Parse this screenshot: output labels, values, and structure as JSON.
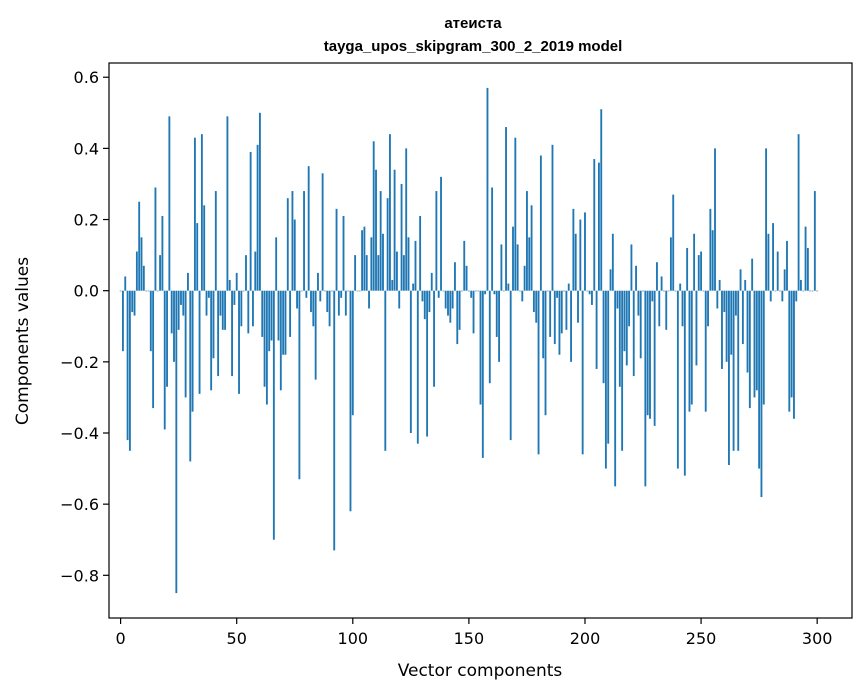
{
  "chart_data": {
    "type": "bar",
    "title": "атеиста",
    "subtitle": "tayga_upos_skipgram_300_2_2019 model",
    "xlabel": "Vector components",
    "ylabel": "Components values",
    "xlim": [
      -5,
      315
    ],
    "ylim": [
      -0.92,
      0.64
    ],
    "xticks": [
      0,
      50,
      100,
      150,
      200,
      250,
      300
    ],
    "yticks": [
      -0.8,
      -0.6,
      -0.4,
      -0.2,
      0.0,
      0.2,
      0.4,
      0.6
    ],
    "ytick_labels": [
      "−0.8",
      "−0.6",
      "−0.4",
      "−0.2",
      "0.0",
      "0.2",
      "0.4",
      "0.6"
    ],
    "grid": false,
    "color": "#1f77b4",
    "values": [
      0.0,
      -0.17,
      0.04,
      -0.42,
      -0.45,
      -0.06,
      -0.07,
      0.11,
      0.25,
      0.15,
      0.07,
      0.0,
      0.0,
      -0.17,
      -0.33,
      0.29,
      0.0,
      0.1,
      0.21,
      -0.39,
      -0.27,
      0.49,
      -0.12,
      -0.2,
      -0.85,
      -0.11,
      -0.04,
      -0.07,
      -0.3,
      0.05,
      -0.48,
      -0.34,
      0.43,
      0.19,
      -0.29,
      0.44,
      0.24,
      -0.07,
      -0.02,
      -0.28,
      -0.19,
      0.28,
      -0.24,
      -0.07,
      -0.11,
      -0.11,
      0.49,
      0.03,
      -0.24,
      -0.04,
      0.05,
      -0.29,
      -0.1,
      0.0,
      0.1,
      -0.12,
      0.39,
      -0.1,
      0.11,
      0.41,
      0.5,
      -0.13,
      -0.27,
      -0.32,
      -0.17,
      -0.14,
      -0.7,
      0.15,
      -0.14,
      -0.28,
      -0.18,
      -0.18,
      0.26,
      -0.13,
      0.28,
      0.2,
      -0.05,
      -0.53,
      0.0,
      0.28,
      -0.02,
      0.35,
      -0.06,
      -0.1,
      -0.25,
      0.05,
      -0.03,
      0.33,
      0.0,
      -0.06,
      -0.1,
      0.0,
      -0.73,
      0.23,
      -0.07,
      -0.02,
      0.21,
      -0.07,
      0.0,
      -0.62,
      -0.35,
      0.1,
      0.0,
      0.0,
      0.17,
      0.18,
      0.1,
      -0.05,
      0.15,
      0.42,
      0.34,
      0.1,
      0.28,
      0.16,
      -0.45,
      0.26,
      0.44,
      0.03,
      0.34,
      0.11,
      -0.05,
      0.3,
      0.1,
      0.4,
      0.15,
      -0.4,
      0.02,
      0.14,
      -0.43,
      0.21,
      -0.03,
      -0.08,
      -0.41,
      -0.06,
      0.05,
      -0.27,
      0.28,
      -0.02,
      0.32,
      0.0,
      -0.05,
      -0.07,
      -0.09,
      -0.05,
      0.08,
      -0.15,
      -0.11,
      0.0,
      0.14,
      0.07,
      0.0,
      -0.02,
      -0.12,
      0.0,
      0.0,
      -0.32,
      -0.47,
      -0.01,
      0.57,
      -0.26,
      0.29,
      -0.01,
      -0.13,
      -0.2,
      0.13,
      0.0,
      0.46,
      0.02,
      -0.42,
      0.18,
      0.43,
      0.13,
      0.0,
      -0.03,
      0.07,
      0.28,
      0.15,
      0.24,
      -0.06,
      -0.09,
      -0.46,
      0.38,
      -0.19,
      -0.35,
      0.0,
      -0.13,
      0.41,
      -0.15,
      -0.02,
      -0.18,
      -0.12,
      0.0,
      -0.11,
      0.02,
      -0.2,
      0.23,
      0.16,
      -0.09,
      0.2,
      -0.46,
      0.22,
      0.0,
      -0.01,
      -0.04,
      0.37,
      -0.22,
      0.36,
      0.51,
      -0.26,
      -0.5,
      -0.43,
      0.06,
      0.16,
      -0.55,
      -0.05,
      -0.27,
      -0.45,
      -0.17,
      -0.21,
      -0.1,
      0.13,
      -0.24,
      0.07,
      -0.07,
      -0.19,
      0.0,
      -0.55,
      -0.35,
      -0.36,
      -0.03,
      -0.38,
      0.08,
      -0.1,
      0.04,
      0.0,
      -0.11,
      0.0,
      0.15,
      0.27,
      0.0,
      -0.5,
      0.02,
      -0.1,
      -0.52,
      0.12,
      -0.34,
      -0.32,
      0.16,
      -0.21,
      0.1,
      0.11,
      0.0,
      -0.34,
      -0.1,
      0.23,
      0.17,
      0.4,
      -0.05,
      0.03,
      -0.22,
      -0.06,
      -0.2,
      -0.49,
      -0.18,
      -0.45,
      -0.07,
      -0.45,
      0.06,
      -0.15,
      0.03,
      -0.23,
      -0.33,
      0.09,
      -0.3,
      -0.28,
      -0.5,
      -0.58,
      -0.32,
      0.4,
      0.16,
      -0.03,
      0.19,
      0.0,
      0.11,
      0.0,
      -0.03,
      0.06,
      0.14,
      -0.34,
      -0.3,
      -0.36,
      -0.03,
      0.44,
      0.03,
      0.0,
      0.18,
      0.12,
      0.0,
      0.0,
      0.28,
      0.0
    ]
  }
}
